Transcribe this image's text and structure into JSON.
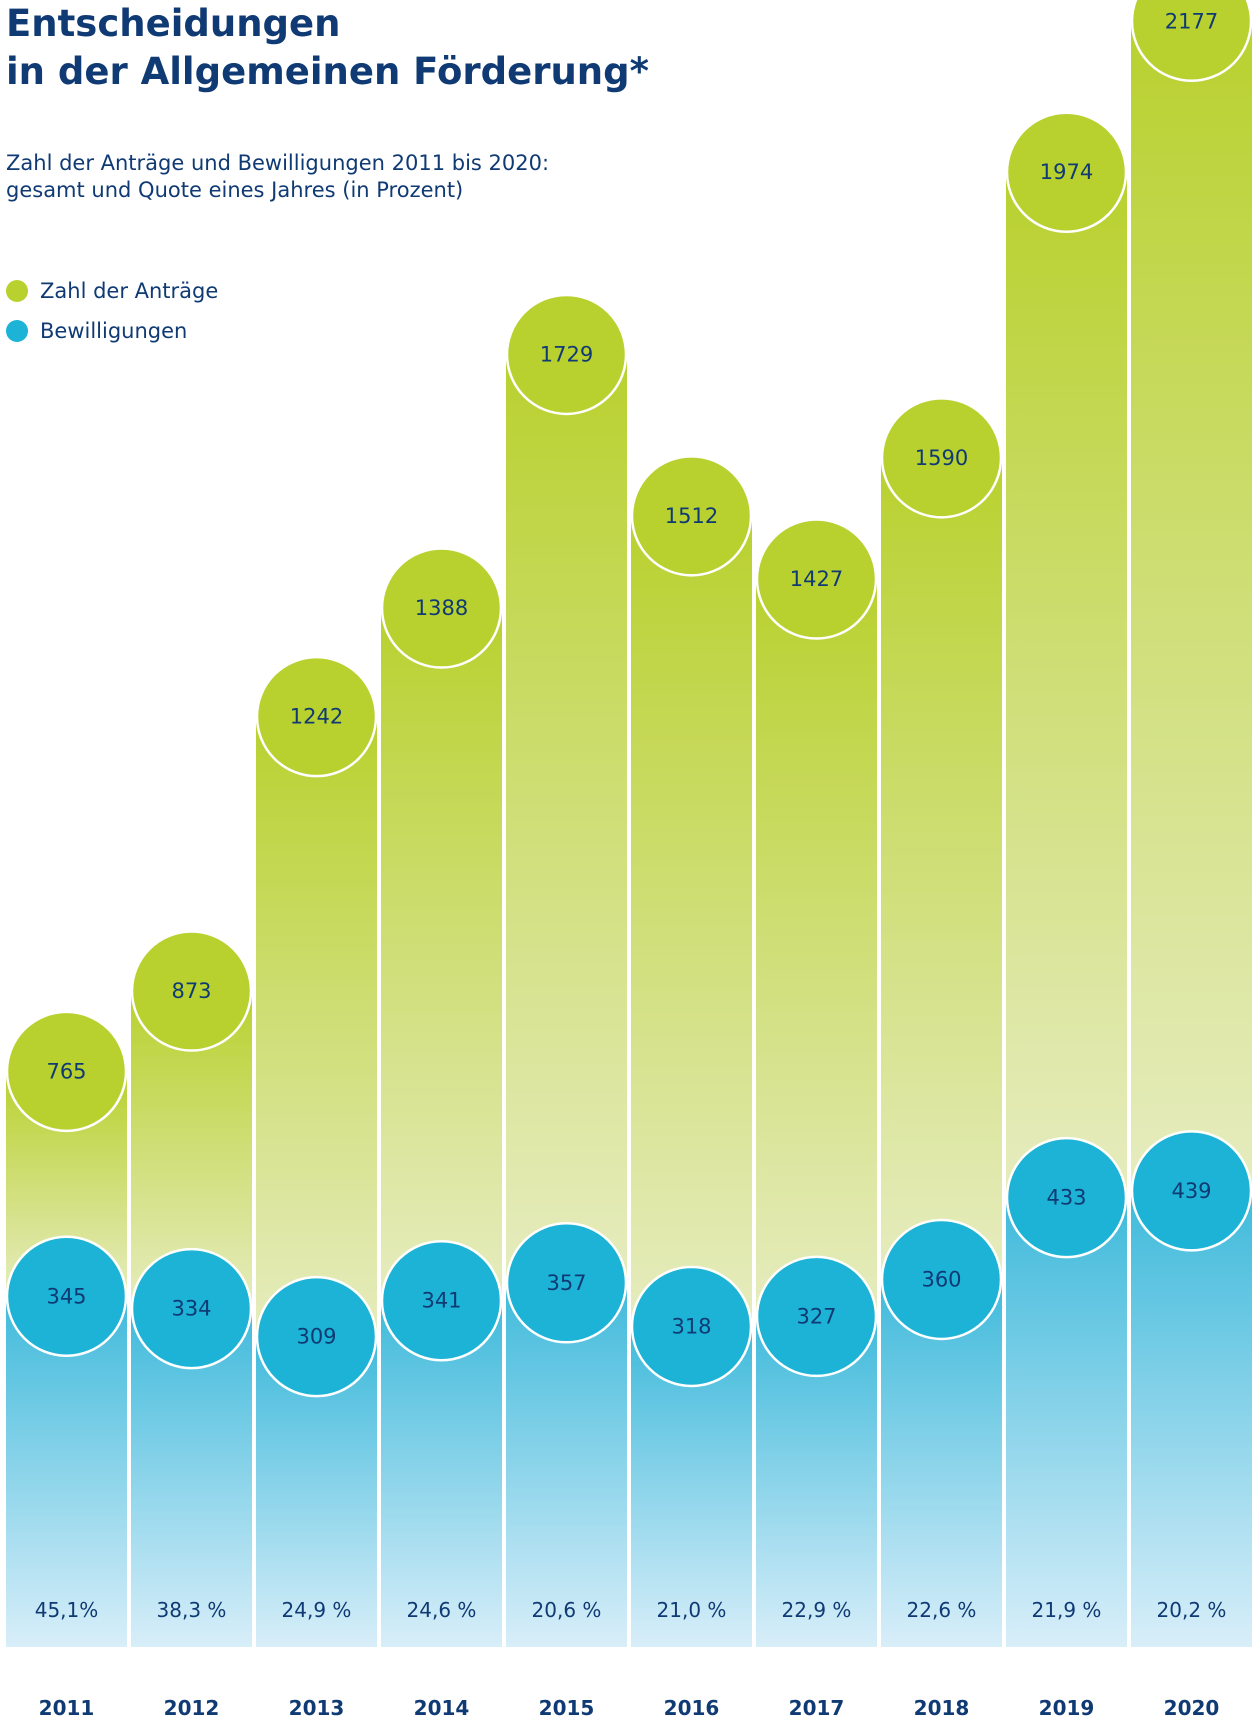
{
  "header": {
    "title_line1": "Entscheidungen",
    "title_line2": "in der Allgemeinen Förderung*",
    "subtitle_line1": "Zahl der Anträge und Bewilligungen 2011 bis 2020:",
    "subtitle_line2": "gesamt und Quote eines Jahres (in Prozent)"
  },
  "legend": [
    {
      "label": "Zahl der Anträge",
      "color": "#b9d12f"
    },
    {
      "label": "Bewilligungen",
      "color": "#1cb3d6"
    }
  ],
  "colors": {
    "text": "#0f3a73",
    "applications": "#b9d12f",
    "applications_light": "#e6ecbf",
    "approvals": "#1cb3d6",
    "approvals_light": "#d8eef9"
  },
  "chart_data": {
    "type": "bar",
    "categories": [
      "2011",
      "2012",
      "2013",
      "2014",
      "2015",
      "2016",
      "2017",
      "2018",
      "2019",
      "2020"
    ],
    "series": [
      {
        "name": "Zahl der Anträge",
        "values": [
          765,
          873,
          1242,
          1388,
          1729,
          1512,
          1427,
          1590,
          1974,
          2177
        ]
      },
      {
        "name": "Bewilligungen",
        "values": [
          345,
          334,
          309,
          341,
          357,
          318,
          327,
          360,
          433,
          439
        ]
      }
    ],
    "quota_labels": [
      "45,1%",
      "38,3 %",
      "24,9 %",
      "24,6 %",
      "20,6 %",
      "21,0 %",
      "22,9 %",
      "22,6 %",
      "21,9 %",
      "20,2 %"
    ],
    "legend_position": "top-left",
    "grid": false
  }
}
